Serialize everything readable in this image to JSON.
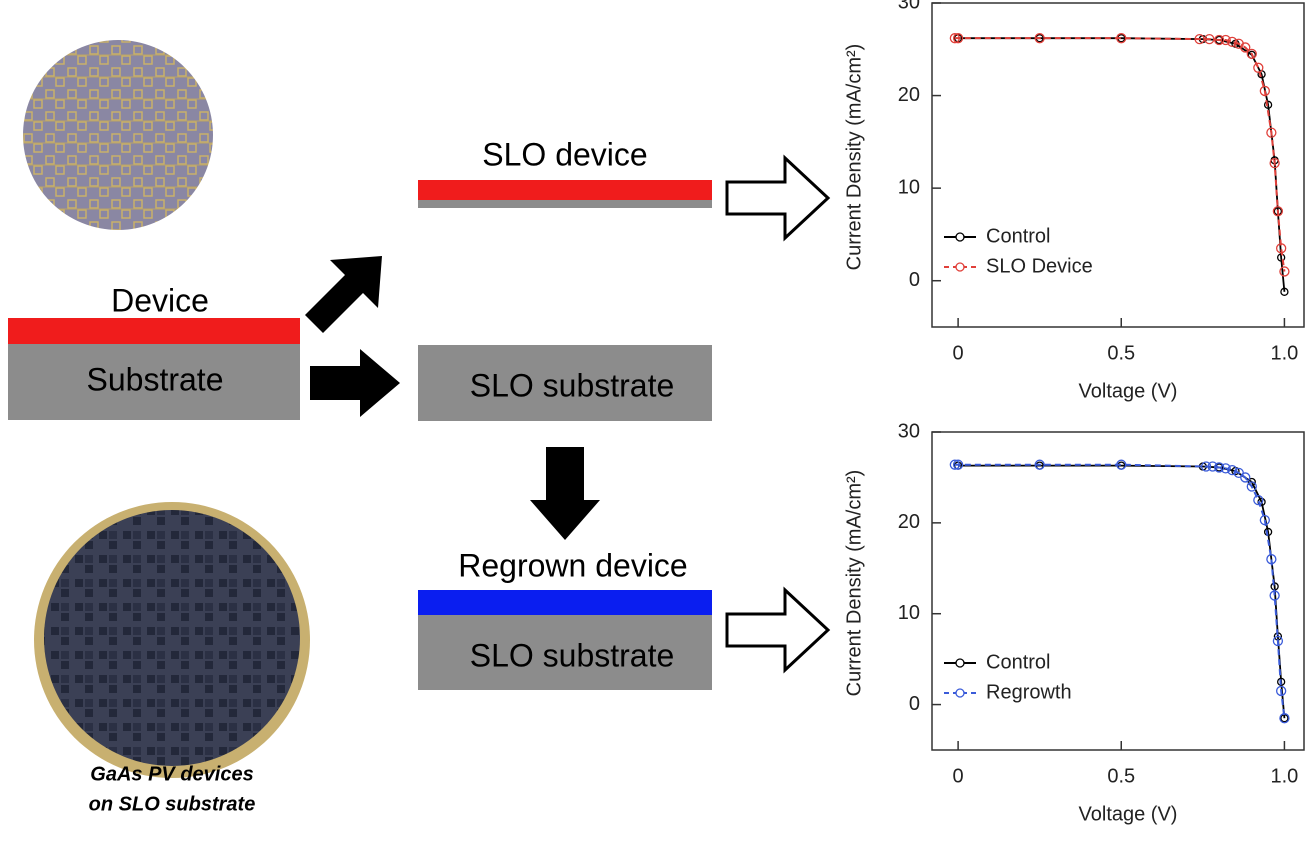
{
  "left": {
    "device_label": "Device",
    "substrate_label": "Substrate",
    "caption": [
      "GaAs PV devices",
      "on SLO substrate"
    ]
  },
  "middle": {
    "slo_device_label": "SLO device",
    "slo_substrate_label": "SLO substrate",
    "regrown_label": "Regrown device",
    "regrown_substrate_label": "SLO substrate"
  },
  "chart_data": [
    {
      "type": "line",
      "xlabel": "Voltage (V)",
      "ylabel": "Current Density (mA/cm²)",
      "xlim": [
        -0.08,
        1.06
      ],
      "ylim": [
        -5,
        30
      ],
      "xticks": [
        0,
        0.5,
        {
          "value": 1,
          "label": "1.0"
        }
      ],
      "yticks": [
        0,
        10,
        20,
        30
      ],
      "series": [
        {
          "name": "Control",
          "color": "#000000",
          "dash": false,
          "x": [
            0,
            0.25,
            0.5,
            0.75,
            0.8,
            0.85,
            0.9,
            0.93,
            0.95,
            0.97,
            0.98,
            0.99,
            1.0
          ],
          "values": [
            26.2,
            26.2,
            26.2,
            26.1,
            26,
            25.6,
            24.4,
            22.3,
            19,
            13,
            7.5,
            2.5,
            -1.2
          ]
        },
        {
          "name": "SLO Device",
          "color": "#e0403a",
          "dash": true,
          "x": [
            -0.01,
            0,
            0.25,
            0.5,
            0.74,
            0.77,
            0.8,
            0.82,
            0.84,
            0.86,
            0.88,
            0.9,
            0.92,
            0.94,
            0.96,
            0.97,
            0.98,
            0.99,
            1.0
          ],
          "values": [
            26.2,
            26.2,
            26.2,
            26.2,
            26.1,
            26.1,
            26,
            26,
            25.8,
            25.6,
            25.2,
            24.5,
            23,
            20.5,
            16,
            12.7,
            7.5,
            3.5,
            1
          ]
        }
      ]
    },
    {
      "type": "line",
      "xlabel": "Voltage (V)",
      "ylabel": "Current Density (mA/cm²)",
      "xlim": [
        -0.08,
        1.06
      ],
      "ylim": [
        -5,
        30
      ],
      "xticks": [
        0,
        0.5,
        {
          "value": 1,
          "label": "1.0"
        }
      ],
      "yticks": [
        0,
        10,
        20,
        30
      ],
      "series": [
        {
          "name": "Control",
          "color": "#000000",
          "dash": false,
          "x": [
            0,
            0.25,
            0.5,
            0.75,
            0.8,
            0.85,
            0.9,
            0.93,
            0.95,
            0.97,
            0.98,
            0.99,
            1.0
          ],
          "values": [
            26.3,
            26.3,
            26.3,
            26.2,
            26.1,
            25.7,
            24.5,
            22.3,
            19,
            13,
            7.5,
            2.5,
            -1.5
          ]
        },
        {
          "name": "Regrowth",
          "color": "#3a5bd9",
          "dash": true,
          "x": [
            -0.01,
            0,
            0.25,
            0.5,
            0.76,
            0.78,
            0.8,
            0.82,
            0.84,
            0.86,
            0.88,
            0.9,
            0.92,
            0.94,
            0.96,
            0.97,
            0.98,
            0.99,
            1.0
          ],
          "values": [
            26.4,
            26.4,
            26.4,
            26.4,
            26.2,
            26.2,
            26.1,
            26,
            25.8,
            25.5,
            25,
            24,
            22.5,
            20.3,
            16,
            12,
            7,
            1.5,
            -1.5
          ]
        }
      ]
    }
  ]
}
